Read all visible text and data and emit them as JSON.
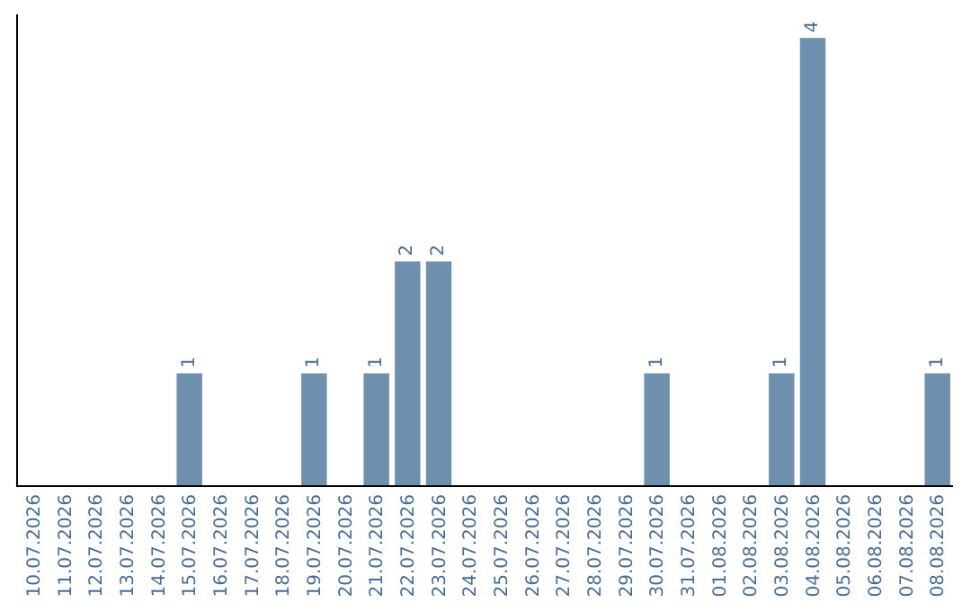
{
  "chart_data": {
    "type": "bar",
    "categories": [
      "10.07.2026",
      "11.07.2026",
      "12.07.2026",
      "13.07.2026",
      "14.07.2026",
      "15.07.2026",
      "16.07.2026",
      "17.07.2026",
      "18.07.2026",
      "19.07.2026",
      "20.07.2026",
      "21.07.2026",
      "22.07.2026",
      "23.07.2026",
      "24.07.2026",
      "25.07.2026",
      "26.07.2026",
      "27.07.2026",
      "28.07.2026",
      "29.07.2026",
      "30.07.2026",
      "31.07.2026",
      "01.08.2026",
      "02.08.2026",
      "03.08.2026",
      "04.08.2026",
      "05.08.2026",
      "06.08.2026",
      "07.08.2026",
      "08.08.2026"
    ],
    "values": [
      0,
      0,
      0,
      0,
      0,
      1,
      0,
      0,
      0,
      1,
      0,
      1,
      2,
      2,
      0,
      0,
      0,
      0,
      0,
      0,
      1,
      0,
      0,
      0,
      1,
      4,
      0,
      0,
      0,
      1
    ],
    "value_labels": [
      null,
      null,
      null,
      null,
      null,
      "1",
      null,
      null,
      null,
      "1",
      null,
      "1",
      "2",
      "2",
      null,
      null,
      null,
      null,
      null,
      null,
      "1",
      null,
      null,
      null,
      "1",
      "4",
      null,
      null,
      null,
      "1"
    ],
    "color": "#6e8fad",
    "grid": false,
    "legend": false,
    "tick_labels": "x"
  }
}
